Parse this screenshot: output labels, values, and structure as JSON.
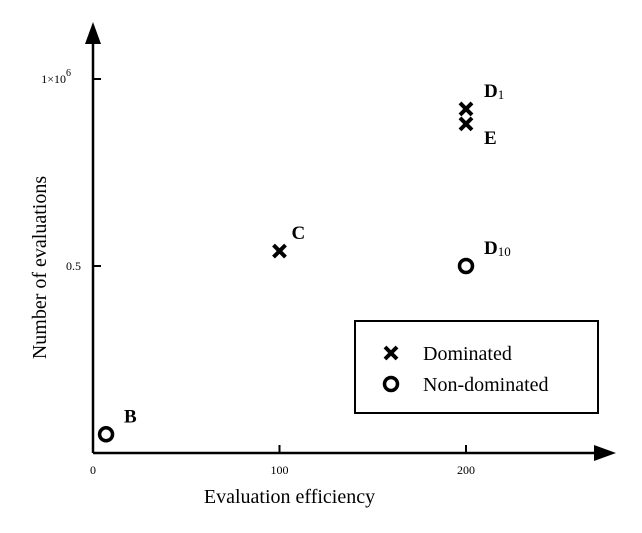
{
  "chart_data": {
    "type": "scatter",
    "xlabel": "Evaluation efficiency",
    "ylabel": "Number of evaluations",
    "xlim": [
      0,
      280
    ],
    "ylim": [
      0,
      1.2
    ],
    "x_ticks": [
      0,
      100,
      200
    ],
    "y_ticks": [
      0.5,
      1.0
    ],
    "x_tick_labels": [
      "0",
      "100",
      "200"
    ],
    "y_tick_labels": [
      "0.5",
      "1×10"
    ],
    "y_tick_exponent": "6",
    "grid": false,
    "legend_position": "bottom-right",
    "series": [
      {
        "name": "Dominated",
        "marker": "x",
        "points": [
          {
            "label": "C",
            "x": 100,
            "y": 0.54
          },
          {
            "label": "D",
            "label_sub": "1",
            "x": 200,
            "y": 0.92
          },
          {
            "label": "E",
            "x": 200,
            "y": 0.88
          }
        ]
      },
      {
        "name": "Non-dominated",
        "marker": "o",
        "points": [
          {
            "label": "B",
            "x": 7,
            "y": 0.05
          },
          {
            "label": "D",
            "label_sub": "10",
            "x": 200,
            "y": 0.5
          }
        ]
      }
    ]
  }
}
